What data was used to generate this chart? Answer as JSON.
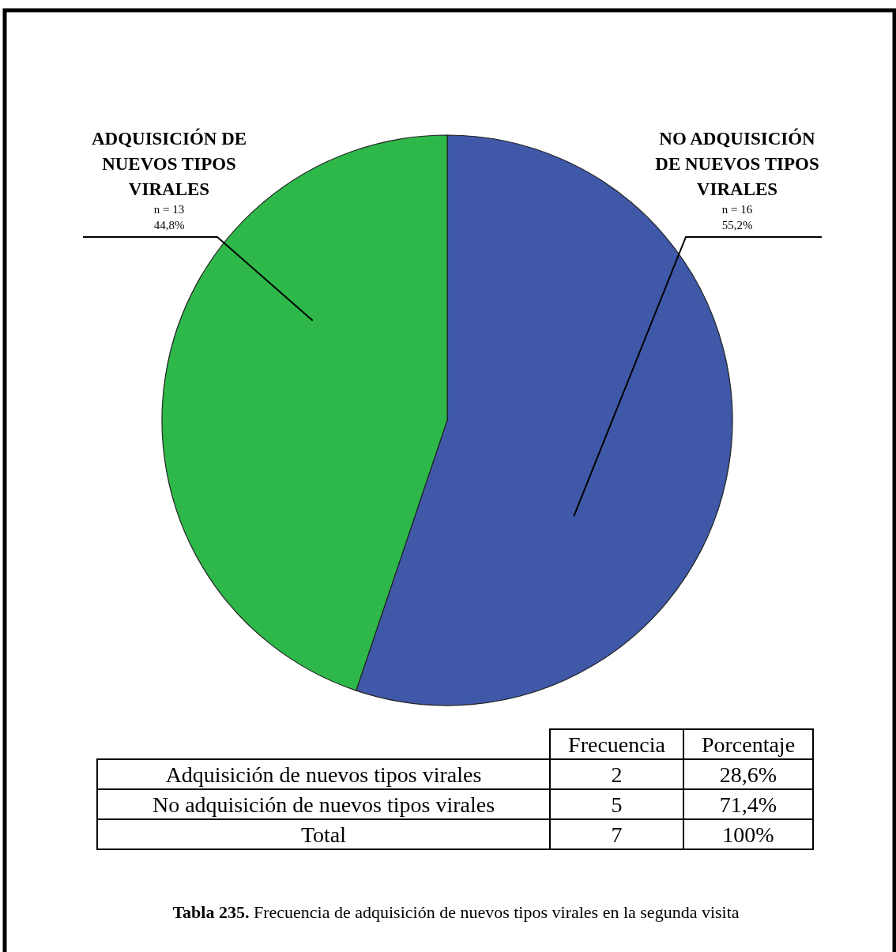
{
  "chart_data": [
    {
      "type": "pie",
      "categories": [
        "NO ADQUISICIÓN DE NUEVOS TIPOS VIRALES",
        "ADQUISICIÓN DE NUEVOS TIPOS VIRALES"
      ],
      "values": [
        16,
        13
      ],
      "colors": [
        "#3f58a8",
        "#2eb84a"
      ],
      "value_labels": [
        "n = 16\n55,2%",
        "n = 13\n44,8%"
      ],
      "annotations": [
        "Tabla 235. Frecuencia de adquisición de nuevos tipos virales en la segunda visita"
      ]
    },
    {
      "type": "other",
      "data_labels": true,
      "categories": [
        "Adquisición de nuevos tipos virales",
        "No adquisición de nuevos tipos virales",
        "Total"
      ],
      "series": [
        {
          "name": "Frecuencia",
          "values": [
            2,
            5,
            7
          ]
        },
        {
          "name": "Porcentaje",
          "values": [
            28.6,
            71.4,
            100
          ],
          "value_labels": [
            "28,6%",
            "71,4%",
            "100%"
          ]
        }
      ]
    }
  ]
}
